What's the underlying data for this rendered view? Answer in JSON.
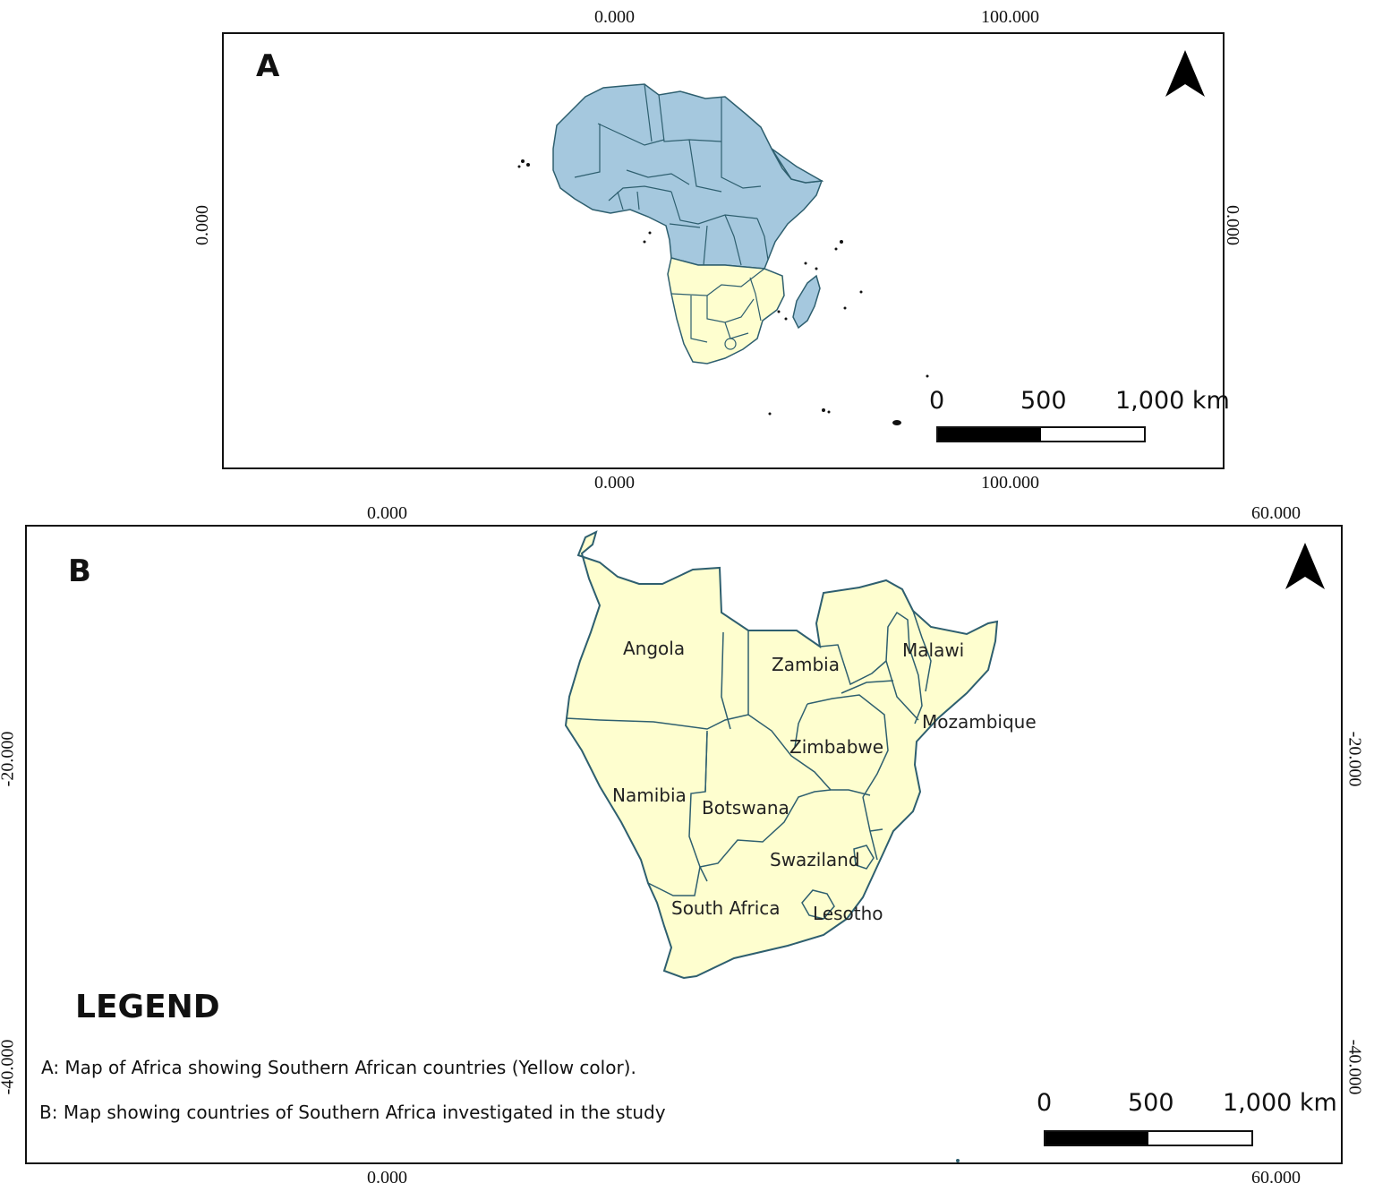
{
  "colors": {
    "africa_blue": "#a5c8de",
    "southern_yellow": "#fefecf",
    "border": "#2e5f6f",
    "frame": "#111111"
  },
  "map_a": {
    "panel_label": "A",
    "top_ticks": [
      "0.000",
      "100.000"
    ],
    "bottom_ticks": [
      "0.000",
      "100.000"
    ],
    "left_tick": "0.000",
    "right_tick": "0.000",
    "scale_labels": [
      "0",
      "500",
      "1,000 km"
    ],
    "north_arrow_icon": "north-arrow-icon"
  },
  "map_b": {
    "panel_label": "B",
    "top_ticks": [
      "0.000",
      "60.000"
    ],
    "bottom_ticks": [
      "0.000",
      "60.000"
    ],
    "left_ticks": [
      "-20.000",
      "-40.000"
    ],
    "right_ticks": [
      "-20.000",
      "-40.000"
    ],
    "scale_labels": [
      "0",
      "500",
      "1,000 km"
    ],
    "north_arrow_icon": "north-arrow-icon",
    "countries": [
      "Angola",
      "Zambia",
      "Malawi",
      "Mozambique",
      "Zimbabwe",
      "Namibia",
      "Botswana",
      "Swaziland",
      "South Africa",
      "Lesotho"
    ]
  },
  "legend": {
    "title": "LEGEND",
    "line_a": "A: Map of Africa showing Southern African countries (Yellow color).",
    "line_b": "B: Map showing countries of Southern Africa investigated in the study"
  }
}
